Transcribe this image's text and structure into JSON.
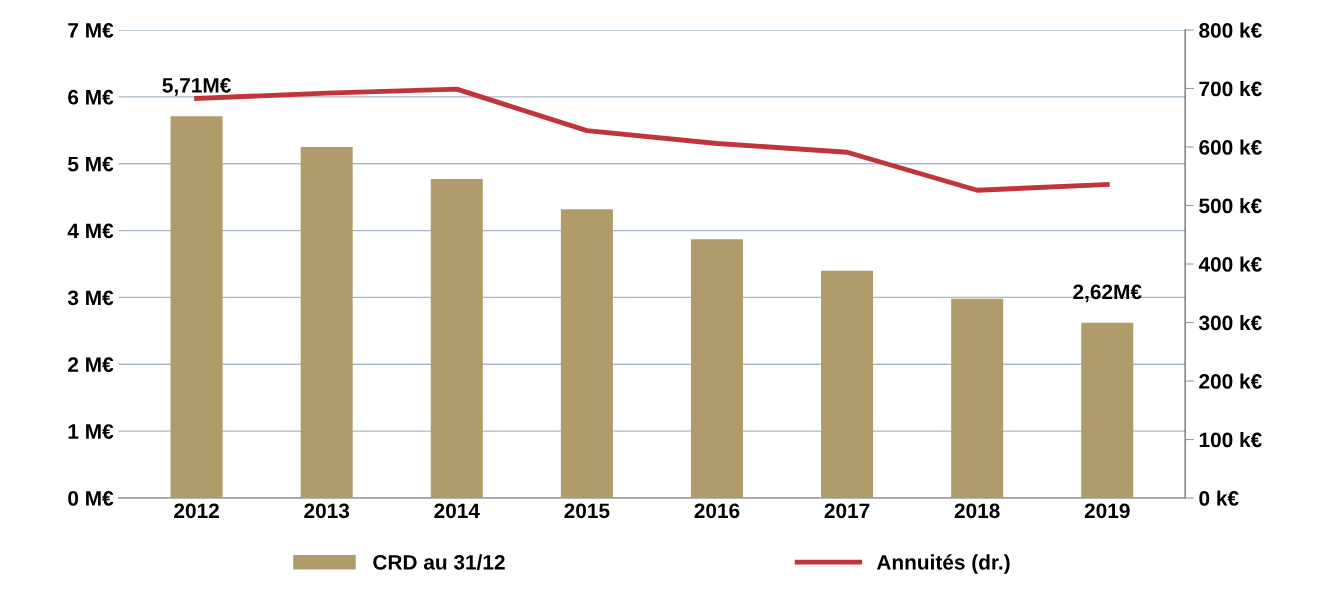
{
  "chart_data": {
    "type": "bar",
    "categories": [
      "2012",
      "2013",
      "2014",
      "2015",
      "2016",
      "2017",
      "2018",
      "2019"
    ],
    "series": [
      {
        "name": "CRD au 31/12",
        "color": "#b09c6a",
        "values": [
          5.71,
          5.25,
          4.77,
          4.32,
          3.87,
          3.4,
          2.98,
          2.62
        ]
      },
      {
        "name": "Annuités (dr.)",
        "type": "line",
        "axis": "y2",
        "color": "#c0353a",
        "values": [
          683,
          692,
          699,
          628,
          606,
          591,
          526,
          536
        ]
      }
    ],
    "ylim": [
      0,
      7
    ],
    "yticks": [
      {
        "value": 0,
        "label": "0 M€"
      },
      {
        "value": 1,
        "label": "1 M€"
      },
      {
        "value": 2,
        "label": "2 M€"
      },
      {
        "value": 3,
        "label": "3 M€"
      },
      {
        "value": 4,
        "label": "4 M€"
      },
      {
        "value": 5,
        "label": "5 M€"
      },
      {
        "value": 6,
        "label": "6 M€"
      },
      {
        "value": 7,
        "label": "7 M€"
      }
    ],
    "y2lim": [
      0,
      800
    ],
    "y2ticks": [
      {
        "value": 0,
        "label": "0 k€"
      },
      {
        "value": 100,
        "label": "100 k€"
      },
      {
        "value": 200,
        "label": "200 k€"
      },
      {
        "value": 300,
        "label": "300 k€"
      },
      {
        "value": 400,
        "label": "400 k€"
      },
      {
        "value": 500,
        "label": "500 k€"
      },
      {
        "value": 600,
        "label": "600 k€"
      },
      {
        "value": 700,
        "label": "700 k€"
      },
      {
        "value": 800,
        "label": "800 k€"
      }
    ],
    "annotations": [
      {
        "text": "5,71M€",
        "x": "2012",
        "y": 5.71
      },
      {
        "text": "2,62M€",
        "x": "2019",
        "y": 2.62
      }
    ],
    "grid": "y",
    "legend": "bottom",
    "marker": "none",
    "line_style": "solid"
  }
}
